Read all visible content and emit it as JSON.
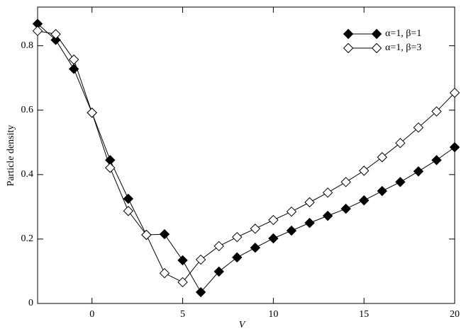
{
  "chart_data": {
    "type": "line",
    "x_label": "V",
    "y_label": "Particle density",
    "x": [
      -3,
      -2,
      -1,
      0,
      1,
      2,
      3,
      4,
      5,
      6,
      7,
      8,
      9,
      10,
      11,
      12,
      13,
      14,
      15,
      16,
      17,
      18,
      19,
      20
    ],
    "series": [
      {
        "name": "α=1, β=1",
        "color": "#000000",
        "marker_fill": "#000000",
        "values": [
          0.868,
          0.818,
          0.728,
          0.592,
          0.445,
          0.325,
          0.213,
          0.215,
          0.134,
          0.035,
          0.099,
          0.143,
          0.173,
          0.202,
          0.226,
          0.25,
          0.272,
          0.294,
          0.32,
          0.349,
          0.377,
          0.41,
          0.445,
          0.485
        ]
      },
      {
        "name": "α=1, β=3",
        "color": "#000000",
        "marker_fill": "#ffffff",
        "values": [
          0.846,
          0.836,
          0.757,
          0.592,
          0.421,
          0.287,
          0.213,
          0.094,
          0.066,
          0.136,
          0.178,
          0.206,
          0.232,
          0.259,
          0.285,
          0.314,
          0.344,
          0.377,
          0.412,
          0.454,
          0.498,
          0.546,
          0.596,
          0.654
        ]
      }
    ],
    "xlim": [
      -3,
      20
    ],
    "ylim": [
      0,
      0.92
    ],
    "xticks": [
      0,
      5,
      10,
      15,
      20
    ],
    "yticks": [
      0,
      0.2,
      0.4,
      0.6,
      0.8
    ],
    "grid": false,
    "legend_position": "top-right"
  }
}
